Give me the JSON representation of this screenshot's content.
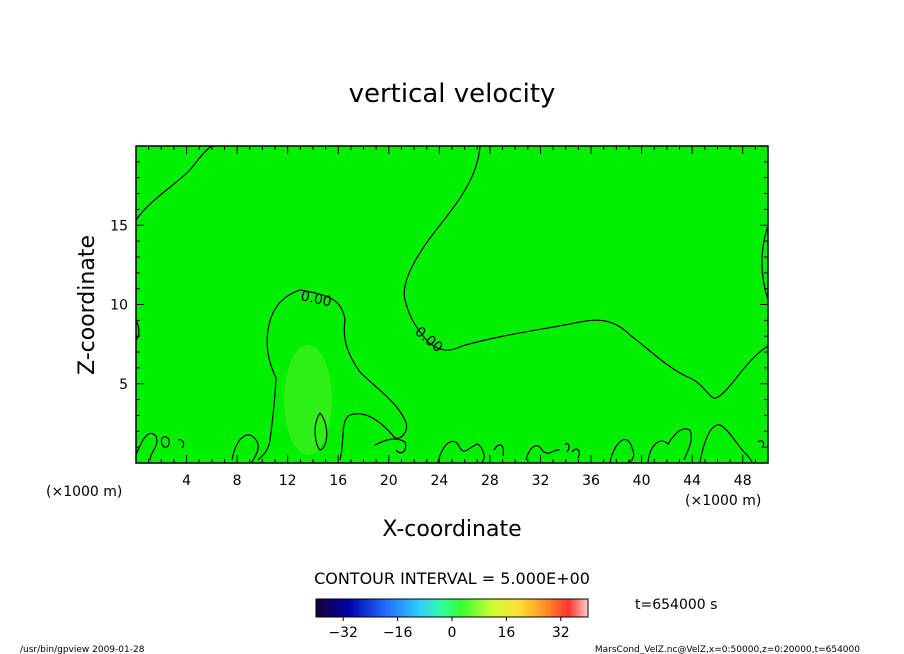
{
  "chart_data": {
    "type": "contour",
    "title": "vertical velocity",
    "xlabel": "X-coordinate",
    "ylabel": "Z-coordinate",
    "x_unit_left": "(×1000 m)",
    "x_unit_right": "(×1000 m)",
    "xlim": [
      0,
      50
    ],
    "ylim": [
      0,
      20
    ],
    "xticks": [
      4,
      8,
      12,
      16,
      20,
      24,
      28,
      32,
      36,
      40,
      44,
      48
    ],
    "yticks": [
      5,
      10,
      15
    ],
    "contour_labels": [
      "0.00",
      "0.00"
    ],
    "contour_interval_text": "CONTOUR INTERVAL = 5.000E+00",
    "time_label": "t=654000 s",
    "colorbar": {
      "min": -40,
      "max": 40,
      "ticks": [
        -32,
        -16,
        0,
        16,
        32
      ]
    },
    "background_color": "#00f000"
  },
  "footer": {
    "left": "/usr/bin/gpview 2009-01-28",
    "right": "MarsCond_VelZ.nc@VelZ,x=0:50000,z=0:20000,t=654000"
  }
}
